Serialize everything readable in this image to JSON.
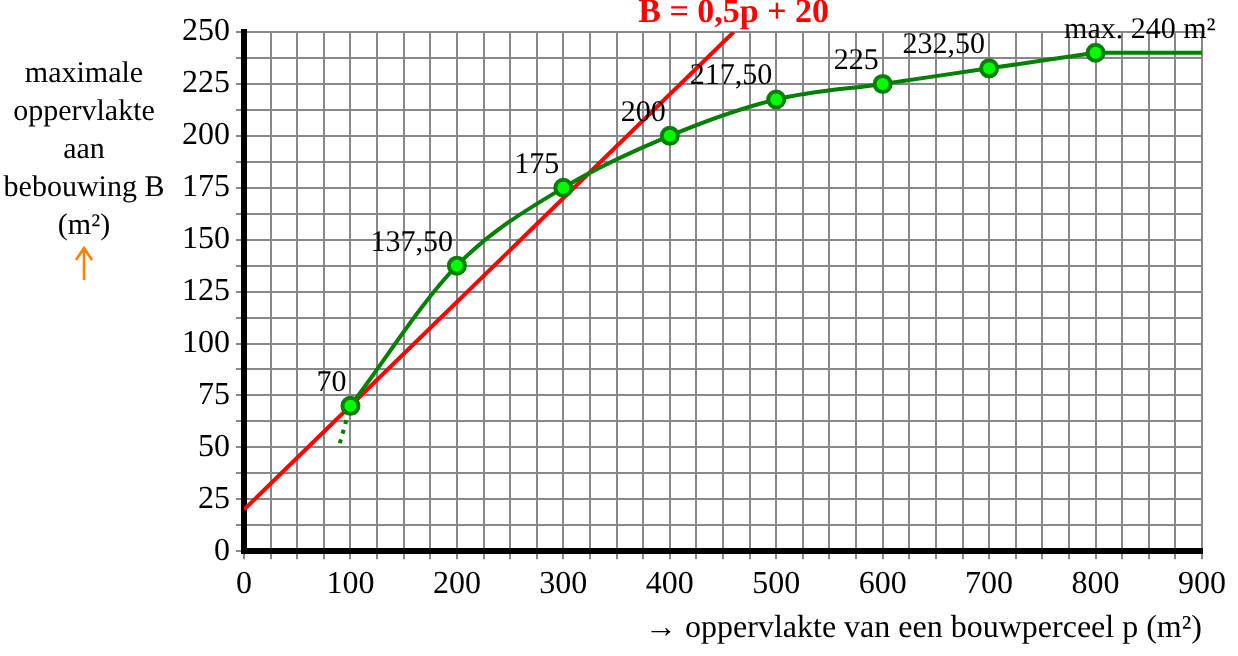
{
  "chart_data": {
    "type": "line",
    "xlabel": "→ oppervlakte van een bouwperceel p (m²)",
    "ylabel": "maximale oppervlakte aan bebouwing B (m²)",
    "xlim": [
      0,
      900
    ],
    "ylim": [
      0,
      250
    ],
    "xticks": [
      0,
      {
        "value": 25,
        "label": null
      },
      {
        "value": 50,
        "label": null
      },
      {
        "value": 75,
        "label": null
      },
      100,
      {
        "value": 125,
        "label": null
      },
      {
        "value": 150,
        "label": null
      },
      {
        "value": 175,
        "label": null
      },
      200,
      {
        "value": 225,
        "label": null
      },
      {
        "value": 250,
        "label": null
      },
      {
        "value": 275,
        "label": null
      },
      300,
      {
        "value": 325,
        "label": null
      },
      {
        "value": 350,
        "label": null
      },
      {
        "value": 375,
        "label": null
      },
      400,
      {
        "value": 425,
        "label": null
      },
      {
        "value": 450,
        "label": null
      },
      {
        "value": 475,
        "label": null
      },
      500,
      {
        "value": 525,
        "label": null
      },
      {
        "value": 550,
        "label": null
      },
      {
        "value": 575,
        "label": null
      },
      600,
      {
        "value": 625,
        "label": null
      },
      {
        "value": 650,
        "label": null
      },
      {
        "value": 675,
        "label": null
      },
      700,
      {
        "value": 725,
        "label": null
      },
      {
        "value": 750,
        "label": null
      },
      {
        "value": 775,
        "label": null
      },
      800,
      {
        "value": 825,
        "label": null
      },
      {
        "value": 850,
        "label": null
      },
      {
        "value": 875,
        "label": null
      },
      900
    ],
    "yticks": [
      0,
      {
        "value": 12.5,
        "label": null
      },
      25,
      {
        "value": 37.5,
        "label": null
      },
      50,
      {
        "value": 62.5,
        "label": null
      },
      75,
      {
        "value": 87.5,
        "label": null
      },
      100,
      {
        "value": 112.5,
        "label": null
      },
      125,
      {
        "value": 137.5,
        "label": null
      },
      150,
      {
        "value": 162.5,
        "label": null
      },
      175,
      {
        "value": 187.5,
        "label": null
      },
      200,
      {
        "value": 212.5,
        "label": null
      },
      225,
      {
        "value": 237.5,
        "label": null
      },
      250
    ],
    "grid": true,
    "legend": false,
    "series": [
      {
        "color": "#008000",
        "x": [
          100,
          200,
          300,
          400,
          500,
          600,
          700,
          800
        ],
        "values": [
          70,
          137.5,
          175,
          200,
          217.5,
          225,
          232.5,
          240
        ],
        "marker": "circle",
        "line_style": "solid",
        "value_labels": [
          "70",
          "137,50",
          "175",
          "200",
          "217,50",
          "225",
          "232,50",
          "max. 240 m²"
        ]
      },
      {
        "color": "#008000",
        "x": [
          800,
          900
        ],
        "values": [
          240,
          240
        ],
        "marker": "none",
        "line_style": "solid"
      },
      {
        "color": "#008000",
        "x": [
          90,
          100
        ],
        "values": [
          52,
          70
        ],
        "marker": "none",
        "line_style": "dotted"
      },
      {
        "name": "B = 0,5p + 20",
        "color": "#ff0000",
        "x": [
          0,
          460
        ],
        "values": [
          20,
          250
        ],
        "marker": "none",
        "line_style": "solid"
      }
    ]
  }
}
